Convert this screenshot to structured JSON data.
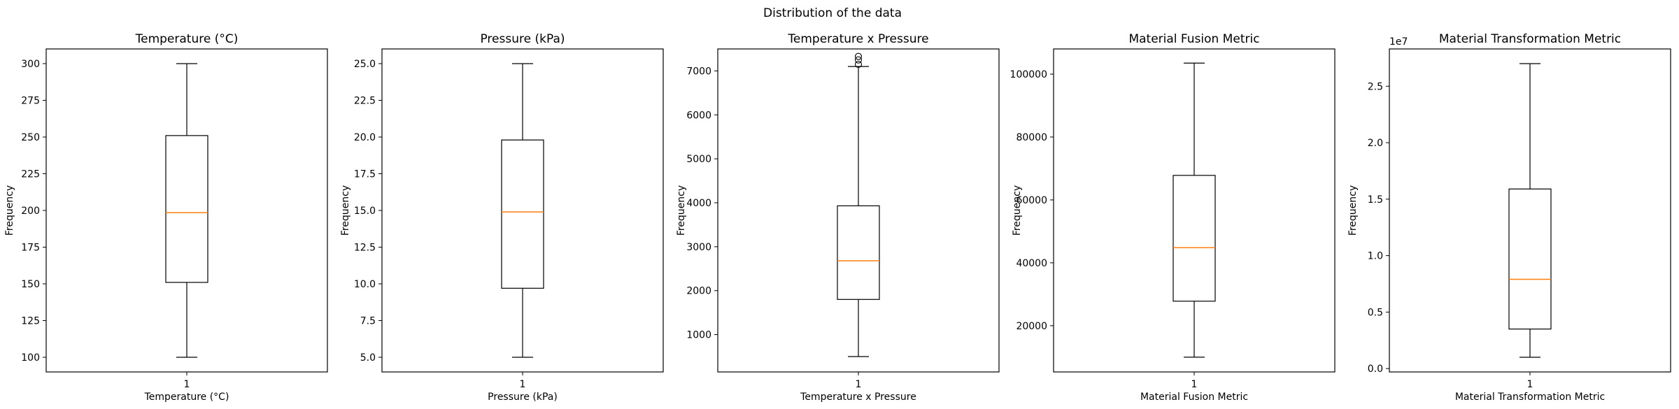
{
  "suptitle": "Distribution of the data",
  "chart_data": [
    {
      "type": "box",
      "title": "Temperature (°C)",
      "xlabel": "Temperature (°C)",
      "ylabel": "Frequency",
      "categories": [
        "1"
      ],
      "ylim": [
        90,
        310
      ],
      "yticks": [
        100,
        125,
        150,
        175,
        200,
        225,
        250,
        275,
        300
      ],
      "ytick_labels": [
        "100",
        "125",
        "150",
        "175",
        "200",
        "225",
        "250",
        "275",
        "300"
      ],
      "scale_label": "",
      "box": {
        "whislo": 100,
        "q1": 151,
        "median": 198.5,
        "q3": 251,
        "whishi": 300,
        "fliers": []
      }
    },
    {
      "type": "box",
      "title": "Pressure (kPa)",
      "xlabel": "Pressure (kPa)",
      "ylabel": "Frequency",
      "categories": [
        "1"
      ],
      "ylim": [
        4,
        26
      ],
      "yticks": [
        5,
        7.5,
        10,
        12.5,
        15,
        17.5,
        20,
        22.5,
        25
      ],
      "ytick_labels": [
        "5.0",
        "7.5",
        "10.0",
        "12.5",
        "15.0",
        "17.5",
        "20.0",
        "22.5",
        "25.0"
      ],
      "scale_label": "",
      "box": {
        "whislo": 5,
        "q1": 9.7,
        "median": 14.9,
        "q3": 19.8,
        "whishi": 25,
        "fliers": []
      }
    },
    {
      "type": "box",
      "title": "Temperature x Pressure",
      "xlabel": "Temperature x Pressure",
      "ylabel": "Frequency",
      "categories": [
        "1"
      ],
      "ylim": [
        150,
        7500
      ],
      "yticks": [
        1000,
        2000,
        3000,
        4000,
        5000,
        6000,
        7000
      ],
      "ytick_labels": [
        "1000",
        "2000",
        "3000",
        "4000",
        "5000",
        "6000",
        "7000"
      ],
      "scale_label": "",
      "box": {
        "whislo": 500,
        "q1": 1800,
        "median": 2680,
        "q3": 3930,
        "whishi": 7100,
        "fliers": [
          7150,
          7250,
          7330
        ]
      }
    },
    {
      "type": "box",
      "title": "Material Fusion Metric",
      "xlabel": "Material Fusion Metric",
      "ylabel": "Frequency",
      "categories": [
        "1"
      ],
      "ylim": [
        5300,
        108000
      ],
      "yticks": [
        20000,
        40000,
        60000,
        80000,
        100000
      ],
      "ytick_labels": [
        "20000",
        "40000",
        "60000",
        "80000",
        "100000"
      ],
      "scale_label": "",
      "box": {
        "whislo": 10000,
        "q1": 27800,
        "median": 44800,
        "q3": 67800,
        "whishi": 103500,
        "fliers": []
      }
    },
    {
      "type": "box",
      "title": "Material Transformation Metric",
      "xlabel": "Material Transformation Metric",
      "ylabel": "Frequency",
      "categories": [
        "1"
      ],
      "ylim": [
        -0.03,
        2.83
      ],
      "yticks": [
        0,
        0.5,
        1.0,
        1.5,
        2.0,
        2.5
      ],
      "ytick_labels": [
        "0.0",
        "0.5",
        "1.0",
        "1.5",
        "2.0",
        "2.5"
      ],
      "scale_label": "1e7",
      "box": {
        "whislo": 0.1,
        "q1": 0.35,
        "median": 0.79,
        "q3": 1.59,
        "whishi": 2.7,
        "fliers": []
      }
    }
  ],
  "colors": {
    "median": "#ff7f0e",
    "line": "#000000",
    "background": "#ffffff"
  }
}
